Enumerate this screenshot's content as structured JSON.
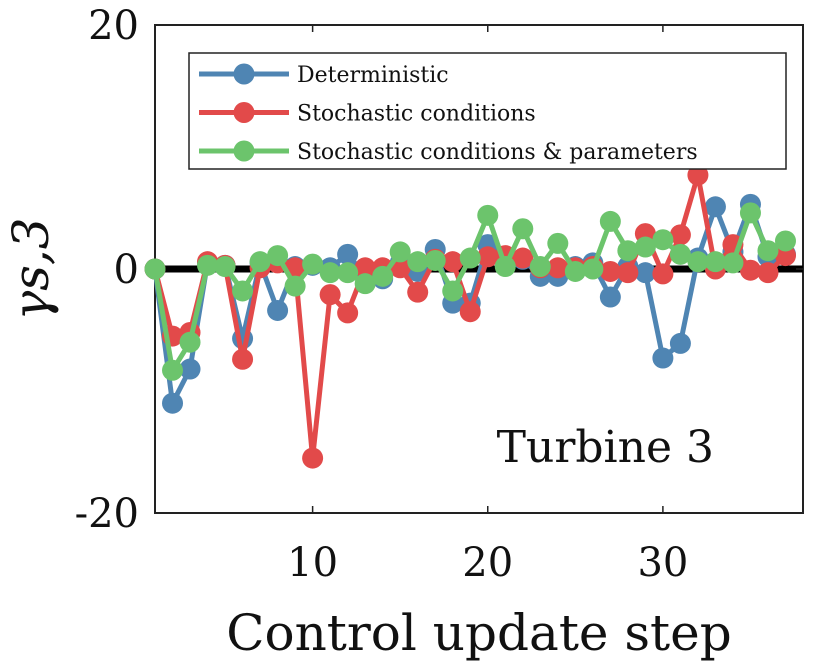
{
  "chart_data": {
    "type": "line",
    "title": "",
    "xlabel": "Control update step",
    "ylabel": "γs,3",
    "xlim": [
      1,
      38
    ],
    "ylim": [
      -20,
      20
    ],
    "xticks": [
      10,
      20,
      30
    ],
    "yticks": [
      -20,
      0,
      20
    ],
    "annotation": "Turbine 3",
    "legend_position": "top",
    "reference_line": 0,
    "series": [
      {
        "name": "Deterministic",
        "color": "#4f85b3",
        "x": [
          1,
          2,
          3,
          4,
          5,
          6,
          7,
          8,
          9,
          10,
          11,
          12,
          13,
          14,
          15,
          16,
          17,
          18,
          19,
          20,
          21,
          22,
          23,
          24,
          25,
          26,
          27,
          28,
          29,
          30,
          31,
          32,
          33,
          34,
          35,
          36,
          37
        ],
        "values": [
          0,
          -11,
          -8.2,
          0.5,
          0.3,
          -5.7,
          0.5,
          -3.4,
          0.2,
          0.3,
          0.1,
          1.2,
          -0.5,
          -0.8,
          0.5,
          -0.2,
          1.6,
          -2.8,
          -2.8,
          2,
          0.8,
          0.8,
          -0.6,
          -0.6,
          0.2,
          0.5,
          -2.3,
          0.2,
          -0.3,
          -7.3,
          -6.1,
          0.9,
          5.1,
          1.4,
          5.3,
          1,
          1.2
        ]
      },
      {
        "name": "Stochastic conditions",
        "color": "#e24a4a",
        "x": [
          1,
          2,
          3,
          4,
          5,
          6,
          7,
          8,
          9,
          10,
          11,
          12,
          13,
          14,
          15,
          16,
          17,
          18,
          19,
          20,
          21,
          22,
          23,
          24,
          25,
          26,
          27,
          28,
          29,
          30,
          31,
          32,
          33,
          34,
          35,
          36,
          37
        ],
        "values": [
          0,
          -5.5,
          -5.2,
          0.6,
          0.3,
          -7.4,
          0.1,
          0.5,
          0.1,
          -15.5,
          -2.1,
          -3.6,
          0.1,
          0.1,
          0.1,
          -1.9,
          0.8,
          0.6,
          -3.5,
          1,
          1.1,
          0.9,
          0.1,
          0.1,
          0.1,
          0.2,
          -0.2,
          -0.3,
          2.9,
          -0.4,
          2.8,
          7.7,
          0,
          2,
          -0.1,
          -0.3,
          1.1
        ]
      },
      {
        "name": "Stochastic conditions & parameters",
        "color": "#6cc46c",
        "x": [
          1,
          2,
          3,
          4,
          5,
          6,
          7,
          8,
          9,
          10,
          11,
          12,
          13,
          14,
          15,
          16,
          17,
          18,
          19,
          20,
          21,
          22,
          23,
          24,
          25,
          26,
          27,
          28,
          29,
          30,
          31,
          32,
          33,
          34,
          35,
          36,
          37
        ],
        "values": [
          0,
          -8.3,
          -6,
          0.3,
          0.2,
          -1.8,
          0.6,
          1.1,
          -1.4,
          0.4,
          -0.3,
          -0.3,
          -1.2,
          -0.6,
          1.4,
          0.6,
          0.7,
          -1.8,
          0.9,
          4.4,
          0.2,
          3.3,
          0.2,
          2.1,
          -0.2,
          0,
          3.9,
          1.5,
          1.8,
          2.4,
          1.2,
          0.6,
          0.6,
          0.5,
          4.6,
          1.5,
          2.3
        ]
      }
    ]
  }
}
